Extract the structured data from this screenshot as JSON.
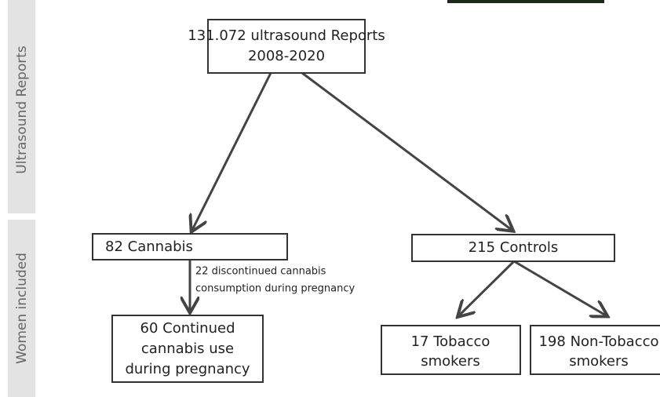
{
  "side_labels": [
    "Ultrasound Reports",
    "Women included"
  ],
  "nodes": [
    {
      "label": [
        "131.072 ultrasound Reports",
        "2008-2020"
      ]
    },
    {
      "label": [
        "82 Cannabis"
      ]
    },
    {
      "label": [
        "215 Controls"
      ]
    },
    {
      "label": [
        "60 Continued",
        "cannabis use",
        "during pregnancy"
      ]
    },
    {
      "label": [
        "17 Tobacco",
        "smokers"
      ]
    },
    {
      "label": [
        "198 Non-Tobacco",
        "smokers"
      ]
    }
  ],
  "edges": [
    {
      "label": [
        "22 discontinued cannabis",
        "consumption during pregnancy"
      ]
    }
  ]
}
